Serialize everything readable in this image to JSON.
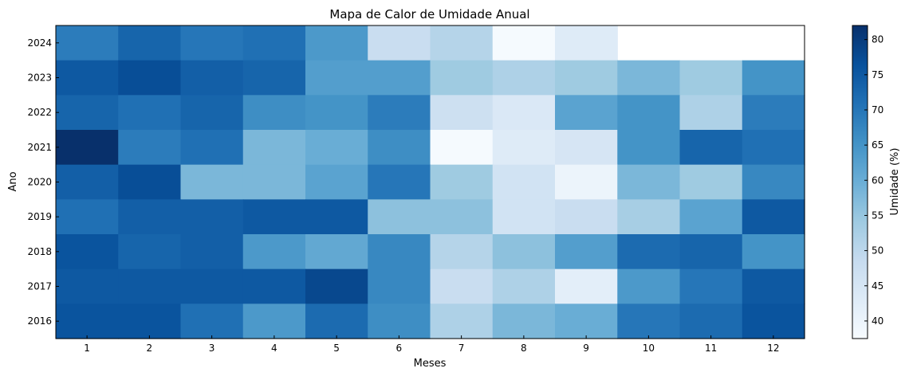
{
  "chart_data": {
    "type": "heatmap",
    "title": "Mapa de Calor de Umidade Anual",
    "xlabel": "Meses",
    "ylabel": "Ano",
    "x_categories": [
      "1",
      "2",
      "3",
      "4",
      "5",
      "6",
      "7",
      "8",
      "9",
      "10",
      "11",
      "12"
    ],
    "y_categories": [
      "2024",
      "2023",
      "2022",
      "2021",
      "2020",
      "2019",
      "2018",
      "2017",
      "2016"
    ],
    "values": [
      [
        69,
        73,
        70,
        71,
        64,
        48,
        51,
        38,
        43,
        null,
        null,
        null
      ],
      [
        75,
        77,
        74,
        73,
        63,
        63,
        54,
        52,
        54,
        58,
        54,
        65
      ],
      [
        73,
        71,
        73,
        66,
        65,
        69,
        47,
        44,
        62,
        65,
        52,
        69
      ],
      [
        82,
        69,
        71,
        58,
        60,
        66,
        38,
        43,
        45,
        65,
        73,
        71
      ],
      [
        74,
        77,
        58,
        58,
        62,
        70,
        54,
        46,
        40,
        58,
        54,
        67
      ],
      [
        71,
        74,
        74,
        75,
        75,
        56,
        56,
        46,
        48,
        53,
        62,
        75
      ],
      [
        76,
        73,
        74,
        64,
        61,
        67,
        51,
        56,
        63,
        72,
        73,
        65
      ],
      [
        75,
        75,
        75,
        75,
        78,
        67,
        48,
        52,
        42,
        64,
        70,
        75
      ],
      [
        76,
        76,
        71,
        64,
        72,
        66,
        52,
        58,
        60,
        70,
        72,
        76
      ]
    ],
    "colorbar": {
      "label": "Umidade (%)",
      "range": [
        37.5,
        82
      ],
      "ticks": [
        40,
        45,
        50,
        55,
        60,
        65,
        70,
        75,
        80
      ],
      "colormap": "Blues"
    }
  }
}
